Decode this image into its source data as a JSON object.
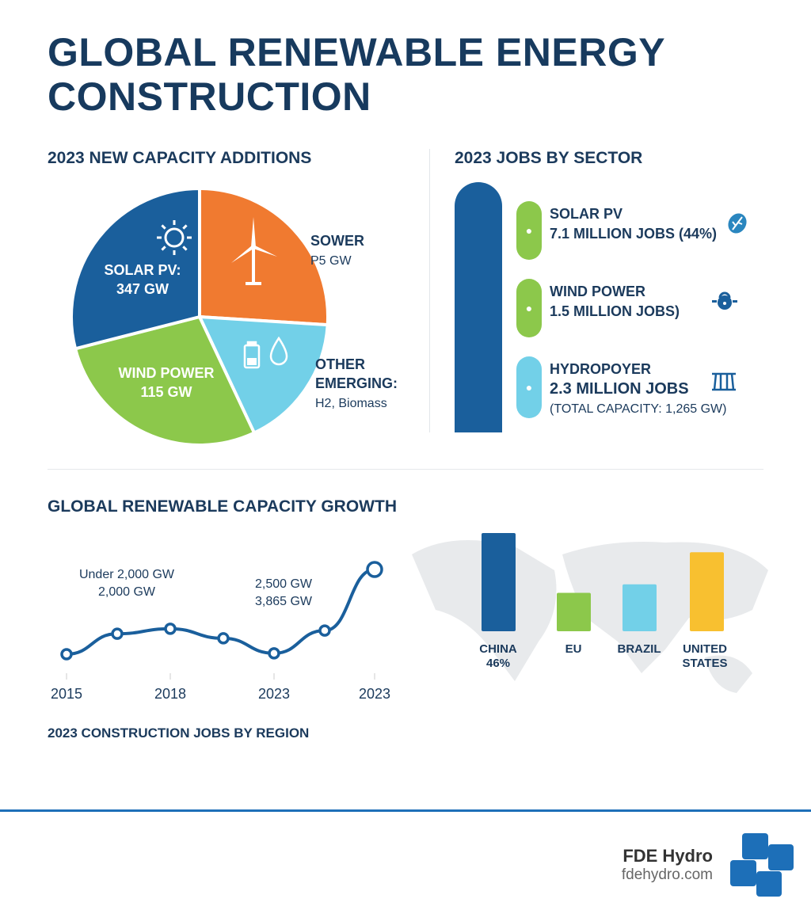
{
  "title_line1": "GLOBAL RENEWABLE ENERGY",
  "title_line2": "CONSTRUCTION",
  "colors": {
    "blue": "#1a5f9c",
    "orange": "#f07a30",
    "green": "#8cc84b",
    "cyan": "#72d0e8",
    "yellow": "#f8c030",
    "navy": "#1b3a5c"
  },
  "chart_data": [
    {
      "type": "pie",
      "title": "2023 NEW CAPACITY ADDITIONS",
      "slices": [
        {
          "label": "SOWER",
          "value_label": "P5 GW",
          "share_percent": 26,
          "color": "#f07a30",
          "icon": "wind-turbine-icon"
        },
        {
          "label": "OTHER EMERGING:",
          "value_label": "H2, Biomass",
          "share_percent": 17,
          "color": "#72d0e8",
          "icon": "battery-water-drop-icon"
        },
        {
          "label": "WIND POWER",
          "value_label": "115 GW",
          "share_percent": 28,
          "color": "#8cc84b"
        },
        {
          "label": "SOLAR PV:",
          "value_label": "347 GW",
          "share_percent": 29,
          "color": "#1a5f9c",
          "icon": "sun-icon"
        }
      ]
    },
    {
      "type": "line",
      "title": "GLOBAL RENEWABLE CAPACITY GROWTH",
      "ylabel": "",
      "xlabel": "",
      "tick_labels": [
        "2015",
        "2018",
        "2023",
        "2023"
      ],
      "values": [
        2000,
        2450,
        2560,
        2350,
        2020,
        2520,
        3865
      ],
      "annotations": [
        [
          "Under 2,000 GW",
          "2,000 GW"
        ],
        [
          "2,500 GW",
          "3,865 GW"
        ]
      ],
      "color": "#1a5f9c",
      "grid": false
    },
    {
      "type": "bar",
      "title": "2023 CONSTRUCTION JOBS BY REGION",
      "categories": [
        "CHINA",
        "EU",
        "BRAZIL",
        "UNITED STATES"
      ],
      "data_labels": [
        "46%",
        "",
        "",
        ""
      ],
      "values": [
        46,
        18,
        22,
        37
      ],
      "colors": [
        "#1a5f9c",
        "#8cc84b",
        "#72d0e8",
        "#f8c030"
      ],
      "background": "world-map"
    }
  ],
  "jobs": {
    "title": "2023 JOBS BY SECTOR",
    "items": [
      {
        "name": "SOLAR PV",
        "value": "7.1 MILLION JOBS (44%)",
        "icon": "leaf-icon",
        "color": "#8cc84b"
      },
      {
        "name": "WIND POWER",
        "value": "1.5 MILLION JOBS)",
        "icon": "lock-icon",
        "color": "#8cc84b"
      },
      {
        "name": "HYDROPOYER",
        "value": "2.3 MILLION JOBS",
        "note": "(TOTAL CAPACITY: 1,265 GW)",
        "icon": "dam-icon",
        "color": "#72d0e8"
      }
    ]
  },
  "footer": {
    "brand": "FDE Hydro",
    "url": "fdehydro.com"
  }
}
